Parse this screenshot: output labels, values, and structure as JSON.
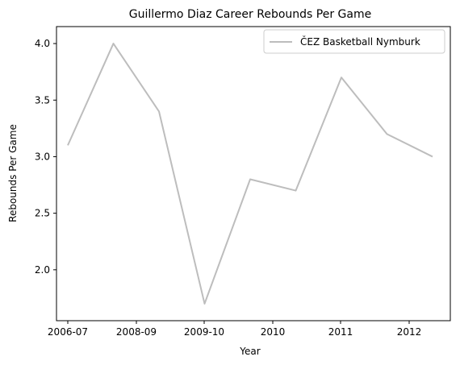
{
  "chart_data": {
    "type": "line",
    "title": "Guillermo Diaz  Career Rebounds Per Game",
    "xlabel": "Year",
    "ylabel": "Rebounds Per Game",
    "x_tick_labels": [
      "2006-07",
      "2008-09",
      "2009-10",
      "2010",
      "2011",
      "2012"
    ],
    "y_ticks": [
      "2.0",
      "2.5",
      "3.0",
      "3.5",
      "4.0"
    ],
    "ylim": [
      1.55,
      4.15
    ],
    "grid": false,
    "legend_position": "top-right",
    "series": [
      {
        "name": "ČEZ Basketball Nymburk",
        "color": "#bdbdbd",
        "values": [
          3.1,
          4.0,
          3.4,
          1.7,
          2.8,
          2.7,
          3.7,
          3.2,
          3.0
        ]
      }
    ]
  }
}
